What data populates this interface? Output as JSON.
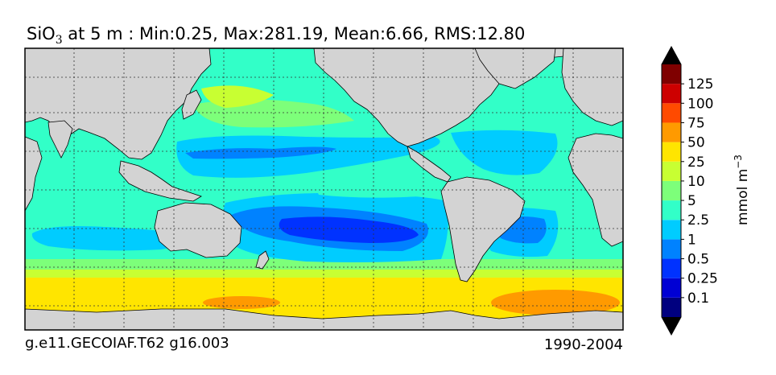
{
  "title": {
    "variable": "SiO",
    "subscript": "3",
    "rest": " at 5 m : Min:0.25, Max:281.19, Mean:6.66, RMS:12.80"
  },
  "footer": {
    "left": "g.e11.GECOIAF.T62 g16.003",
    "right": "1990-2004"
  },
  "colorbar": {
    "unit_label": "mmol m",
    "unit_exponent": "−3",
    "levels": [
      "0.1",
      "0.25",
      "0.5",
      "1",
      "2.5",
      "5",
      "10",
      "25",
      "50",
      "75",
      "100",
      "125"
    ],
    "colors": [
      "#00007f",
      "#0000d4",
      "#0032ff",
      "#0082ff",
      "#00ccff",
      "#32ffc8",
      "#7dff7a",
      "#c8ff32",
      "#ffe500",
      "#ff9a00",
      "#ff4a00",
      "#cd0000",
      "#7f0000"
    ],
    "extend": "both"
  },
  "map": {
    "land_color": "#d3d3d3",
    "projection": "cylindrical, Pacific-centred",
    "grid": "dotted"
  }
}
